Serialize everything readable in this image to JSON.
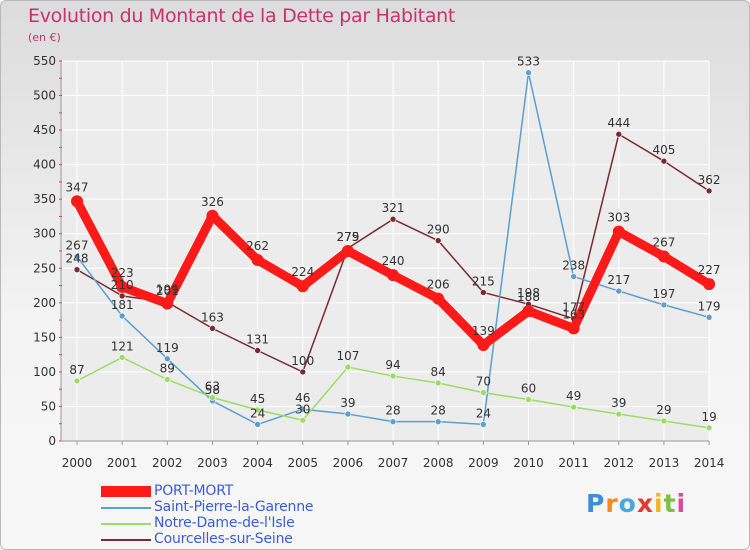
{
  "title": "Evolution du Montant de la Dette par Habitant",
  "unit_label": "(en €)",
  "logo_text": "Proxiti",
  "colors": {
    "title": "#c8326a",
    "axis_text": "#333333",
    "grid": "#ffffff",
    "legend_text": "#3b5bd8"
  },
  "chart_data": {
    "type": "line",
    "title": "Evolution du Montant de la Dette par Habitant",
    "ylabel": "(en €)",
    "xlabel": "",
    "x": [
      "2000",
      "2001",
      "2002",
      "2003",
      "2004",
      "2005",
      "2006",
      "2007",
      "2008",
      "2009",
      "2010",
      "2011",
      "2012",
      "2013",
      "2014"
    ],
    "ylim": [
      0,
      550
    ],
    "yticks": [
      0,
      50,
      100,
      150,
      200,
      250,
      300,
      350,
      400,
      450,
      500,
      550
    ],
    "grid": true,
    "legend_position": "bottom-left",
    "series": [
      {
        "name": "PORT-MORT",
        "color": "#ff1a1a",
        "values": [
          347,
          223,
          199,
          326,
          262,
          224,
          275,
          240,
          206,
          139,
          188,
          163,
          303,
          267,
          227
        ],
        "labels": [
          "347",
          "223",
          "199",
          "326",
          "262",
          "224",
          "275",
          "240",
          "206",
          "139",
          "188",
          "163",
          "303",
          "267",
          "227"
        ]
      },
      {
        "name": "Saint-Pierre-la-Garenne",
        "color": "#5a9fd1",
        "values": [
          267,
          181,
          119,
          58,
          24,
          46,
          39,
          28,
          28,
          24,
          533,
          238,
          217,
          197,
          179
        ],
        "labels": [
          "267",
          "181",
          "119",
          "58",
          "24",
          "46",
          "39",
          "28",
          "28",
          "24",
          "533",
          "238",
          "217",
          "197",
          "179"
        ]
      },
      {
        "name": "Notre-Dame-de-l'Isle",
        "color": "#99dd66",
        "values": [
          87,
          121,
          89,
          63,
          45,
          30,
          107,
          94,
          84,
          70,
          60,
          49,
          39,
          29,
          19
        ],
        "labels": [
          "87",
          "121",
          "89",
          "63",
          "45",
          "30",
          "107",
          "94",
          "84",
          "70",
          "60",
          "49",
          "39",
          "29",
          "19"
        ]
      },
      {
        "name": "Courcelles-sur-Seine",
        "color": "#7a2a30",
        "values": [
          248,
          210,
          201,
          163,
          131,
          100,
          279,
          321,
          290,
          215,
          198,
          177,
          444,
          405,
          362
        ],
        "labels": [
          "248",
          "210",
          "201",
          "163",
          "131",
          "100",
          "279",
          "321",
          "290",
          "215",
          "198",
          "177",
          "444",
          "405",
          "362"
        ]
      }
    ]
  }
}
